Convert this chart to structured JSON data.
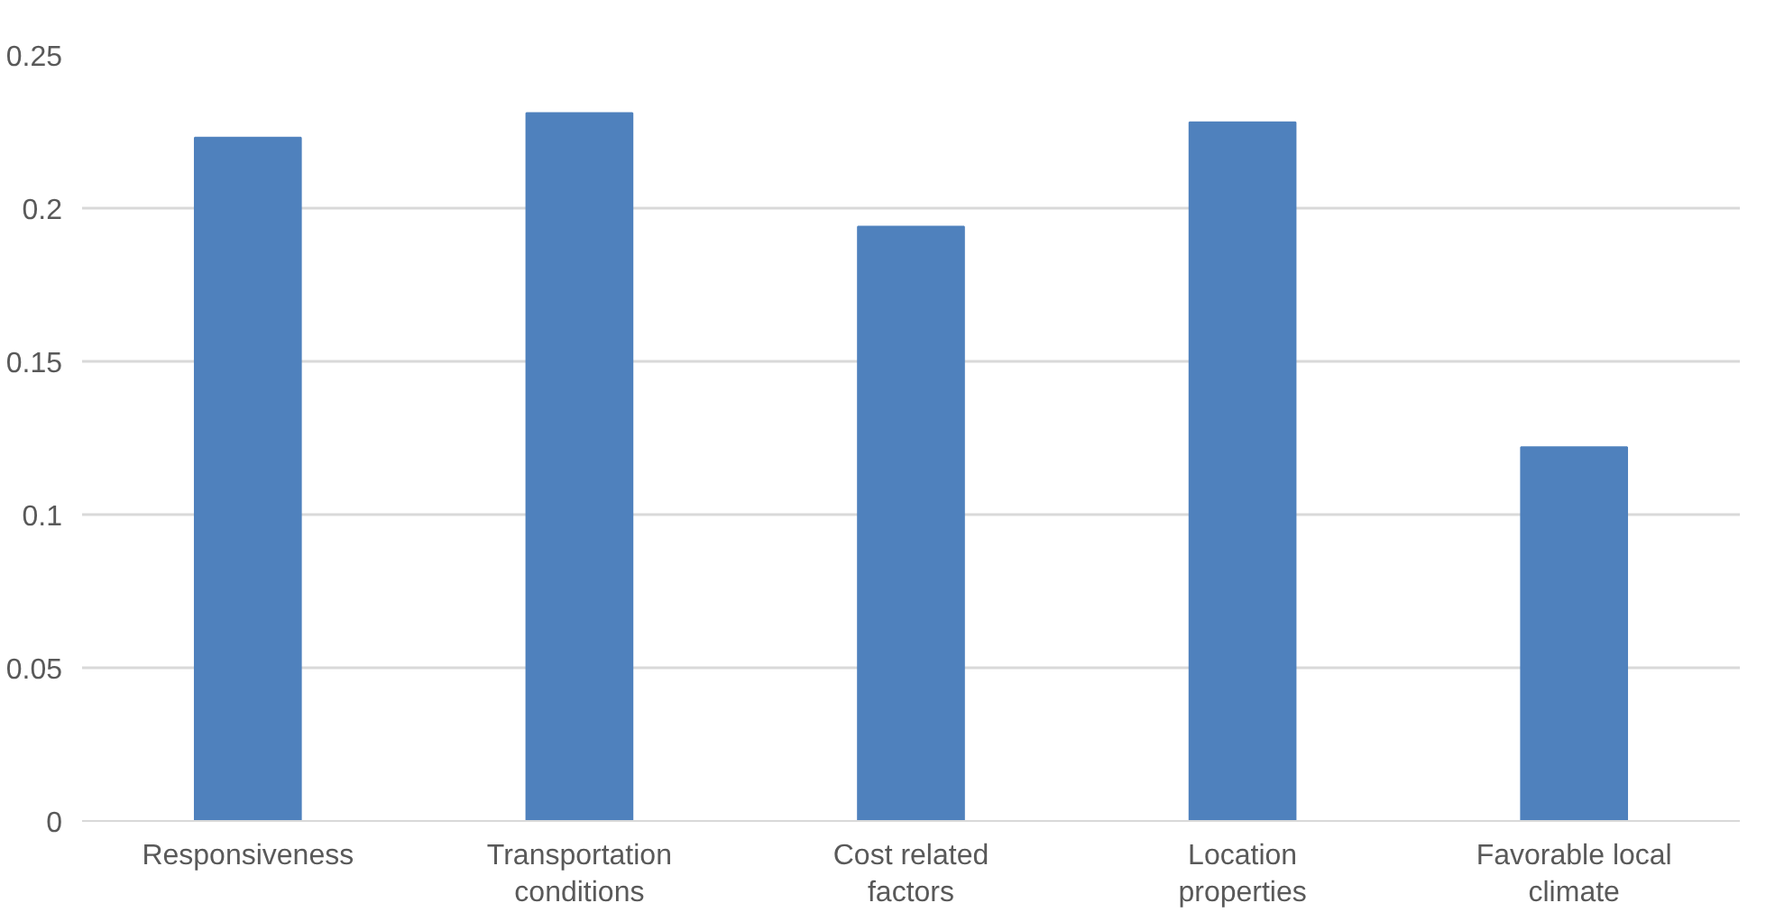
{
  "chart_data": {
    "type": "bar",
    "categories": [
      "Responsiveness",
      "Transportation conditions",
      "Cost related factors",
      "Location properties",
      "Favorable local climate"
    ],
    "values": [
      0.223,
      0.231,
      0.194,
      0.228,
      0.122
    ],
    "color": "#4f81bd",
    "ylim": [
      0,
      0.25
    ],
    "yticks": [
      0,
      0.05,
      0.1,
      0.15,
      0.2,
      0.25
    ],
    "grid": "y"
  }
}
